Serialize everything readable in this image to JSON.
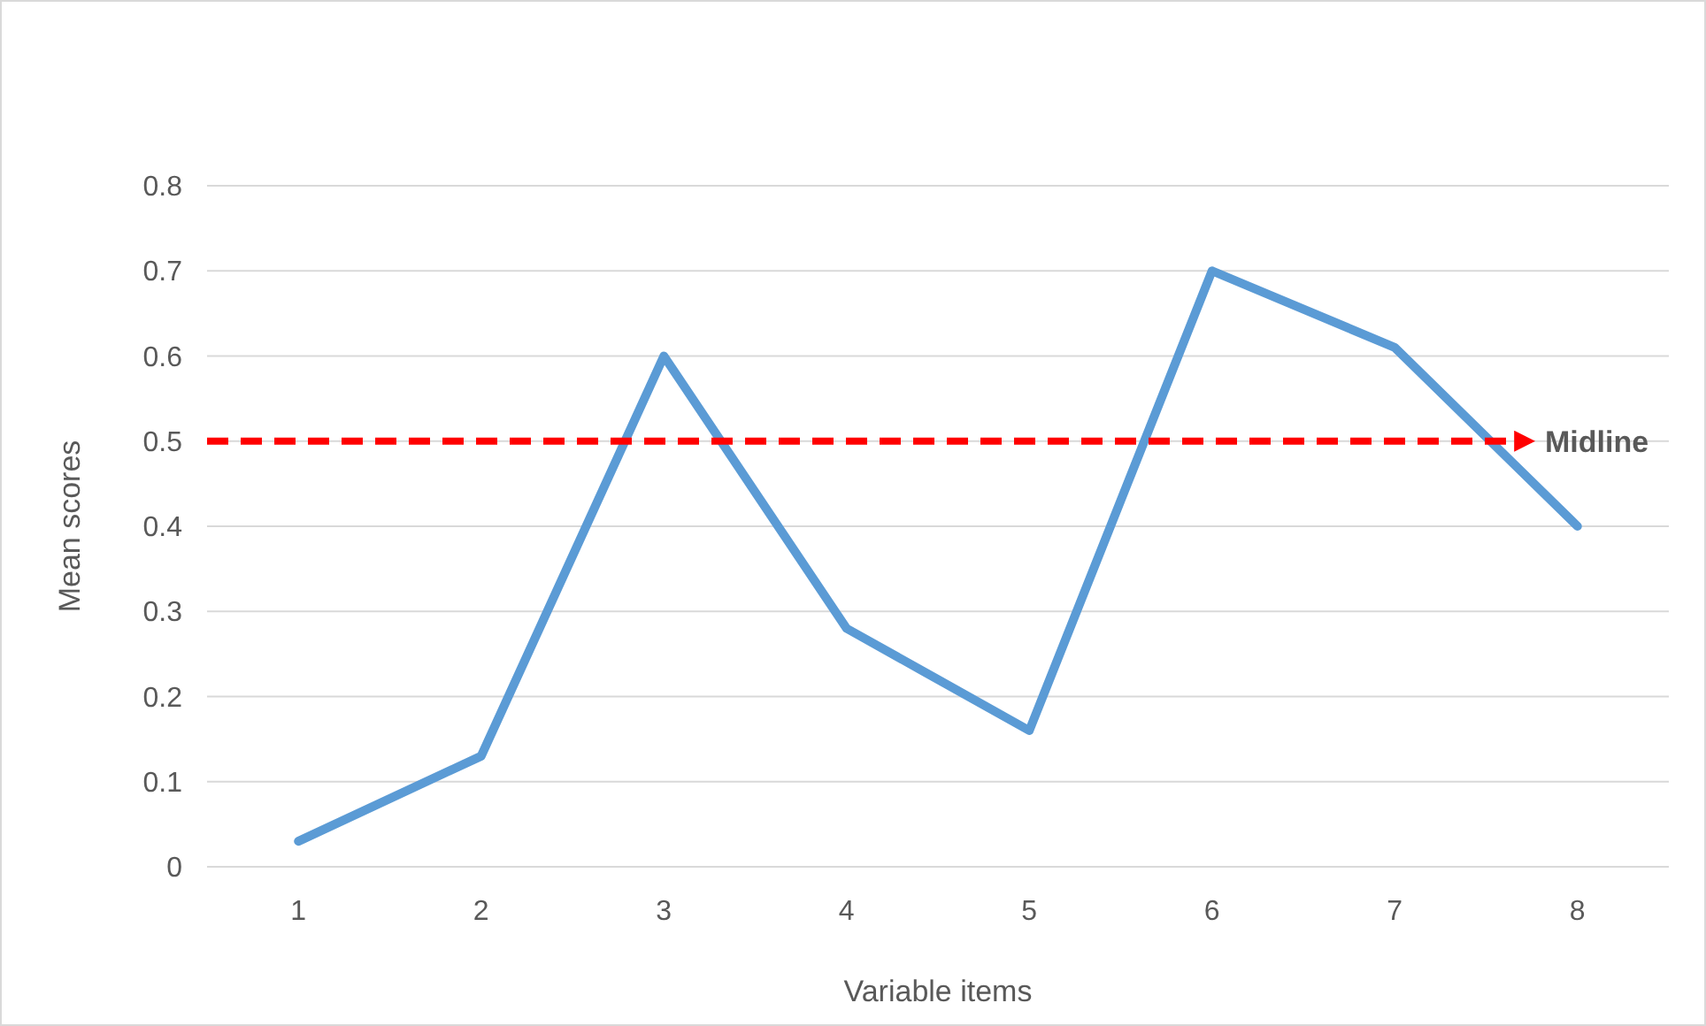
{
  "chart_data": {
    "type": "line",
    "xlabel": "Variable items",
    "ylabel": "Mean scores",
    "categories": [
      "1",
      "2",
      "3",
      "4",
      "5",
      "6",
      "7",
      "8"
    ],
    "series": [
      {
        "color": "#5b9bd5",
        "values": [
          0.03,
          0.13,
          0.6,
          0.28,
          0.16,
          0.7,
          0.61,
          0.4
        ]
      }
    ],
    "ylim": [
      0,
      0.8
    ],
    "yticks": [
      0,
      0.1,
      0.2,
      0.3,
      0.4,
      0.5,
      0.6,
      0.7,
      0.8
    ],
    "grid": "y",
    "marker": "none",
    "line_style": "solid",
    "ref_lines": [
      {
        "axis": "y",
        "value": 0.5,
        "label": "Midline",
        "color": "#ff0000",
        "line_style": "dashed"
      }
    ]
  }
}
